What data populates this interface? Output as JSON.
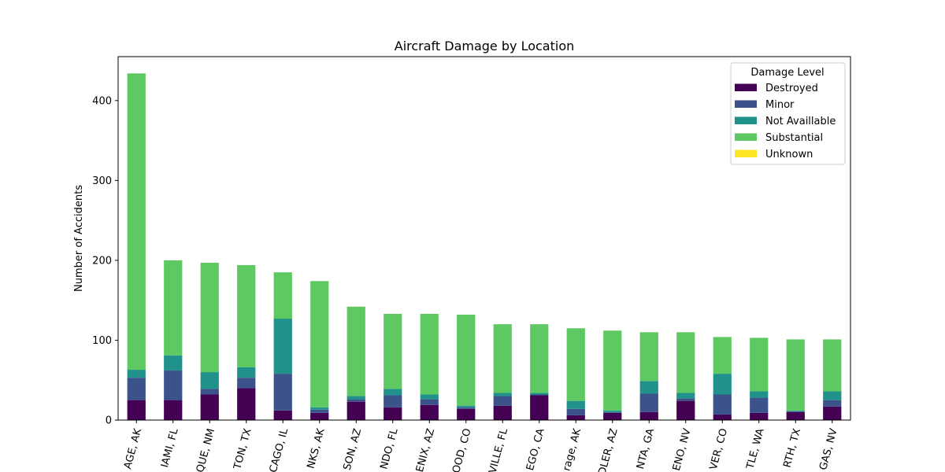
{
  "chart_data": {
    "type": "bar",
    "stacked": true,
    "title": "Aircraft Damage by Location",
    "xlabel": "",
    "ylabel": "Number of Accidents",
    "ylim": [
      0,
      455
    ],
    "yticks": [
      0,
      100,
      200,
      300,
      400
    ],
    "categories": [
      "AGE, AK",
      "IAMI, FL",
      "QUE, NM",
      "TON, TX",
      "CAGO, IL",
      "NKS, AK",
      "SON, AZ",
      "NDO, FL",
      "ENIX, AZ",
      "OOD, CO",
      "VILLE, FL",
      "EGO, CA",
      "rage, AK",
      "DLER, AZ",
      "NTA, GA",
      "ENO, NV",
      "VER, CO",
      "TLE, WA",
      "RTH, TX",
      "GAS, NV"
    ],
    "series": [
      {
        "name": "Destroyed",
        "color": "#440154",
        "values": [
          25,
          25,
          32,
          40,
          12,
          9,
          23,
          16,
          19,
          14,
          18,
          31,
          6,
          9,
          10,
          24,
          7,
          9,
          10,
          17
        ]
      },
      {
        "name": "Minor",
        "color": "#3b528b",
        "values": [
          28,
          37,
          7,
          13,
          46,
          4,
          3,
          15,
          7,
          2,
          12,
          1,
          8,
          1,
          23,
          3,
          25,
          19,
          1,
          8
        ]
      },
      {
        "name": "Not Availlable",
        "color": "#21918c",
        "values": [
          10,
          19,
          21,
          13,
          69,
          3,
          4,
          8,
          6,
          2,
          4,
          2,
          10,
          2,
          16,
          7,
          26,
          8,
          1,
          11
        ]
      },
      {
        "name": "Substantial",
        "color": "#5ec962",
        "values": [
          371,
          119,
          137,
          128,
          58,
          158,
          112,
          94,
          101,
          114,
          86,
          86,
          91,
          100,
          61,
          76,
          46,
          67,
          89,
          65
        ]
      },
      {
        "name": "Unknown",
        "color": "#fde725",
        "values": [
          0,
          0,
          0,
          0,
          0,
          0,
          0,
          0,
          0,
          0,
          0,
          0,
          0,
          0,
          0,
          0,
          0,
          0,
          0,
          0
        ]
      }
    ],
    "legend": {
      "title": "Damage Level",
      "placement": "upper right"
    },
    "grid": false
  }
}
